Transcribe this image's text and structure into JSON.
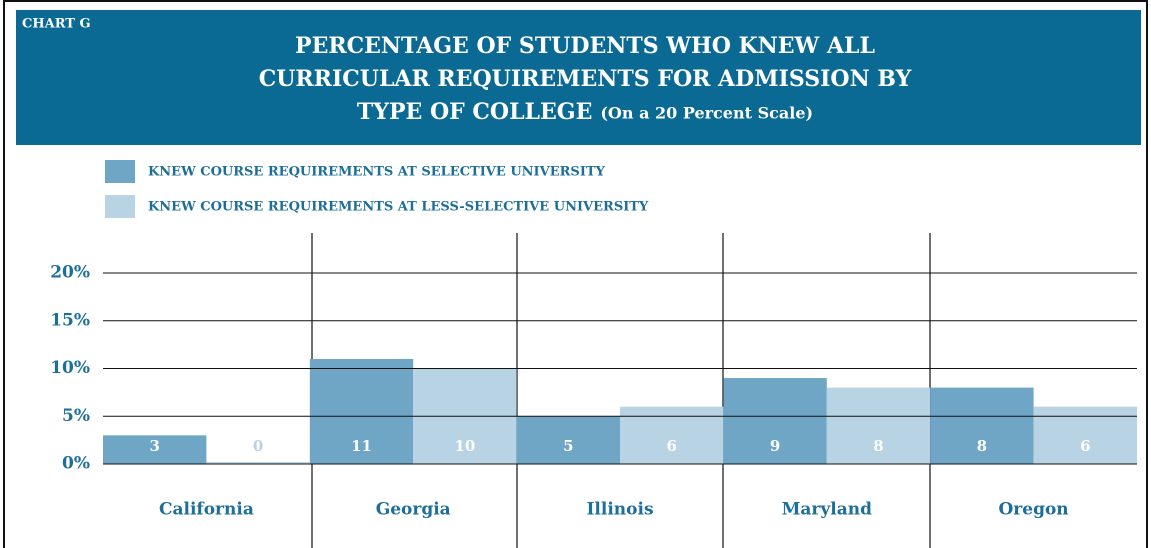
{
  "chart_data": {
    "type": "bar",
    "label": "CHART G",
    "title_lines": [
      "PERCENTAGE OF STUDENTS WHO KNEW ALL",
      "CURRICULAR REQUIREMENTS FOR ADMISSION BY",
      "TYPE OF COLLEGE"
    ],
    "subtitle": "(On a 20 Percent Scale)",
    "categories": [
      "California",
      "Georgia",
      "Illinois",
      "Maryland",
      "Oregon"
    ],
    "series": [
      {
        "name": "KNEW COURSE REQUIREMENTS AT SELECTIVE UNIVERSITY",
        "color": "#6fa6c5",
        "values": [
          3,
          11,
          5,
          9,
          8
        ]
      },
      {
        "name": "KNEW COURSE REQUIREMENTS AT LESS-SELECTIVE UNIVERSITY",
        "color": "#b8d3e4",
        "values": [
          0,
          10,
          6,
          8,
          6
        ]
      }
    ],
    "ylim": [
      0,
      20
    ],
    "yticks": [
      {
        "value": 0,
        "label": "0%"
      },
      {
        "value": 5,
        "label": "5%"
      },
      {
        "value": 10,
        "label": "10%"
      },
      {
        "value": 15,
        "label": "15%"
      },
      {
        "value": 20,
        "label": "20%"
      }
    ],
    "grid": true
  }
}
